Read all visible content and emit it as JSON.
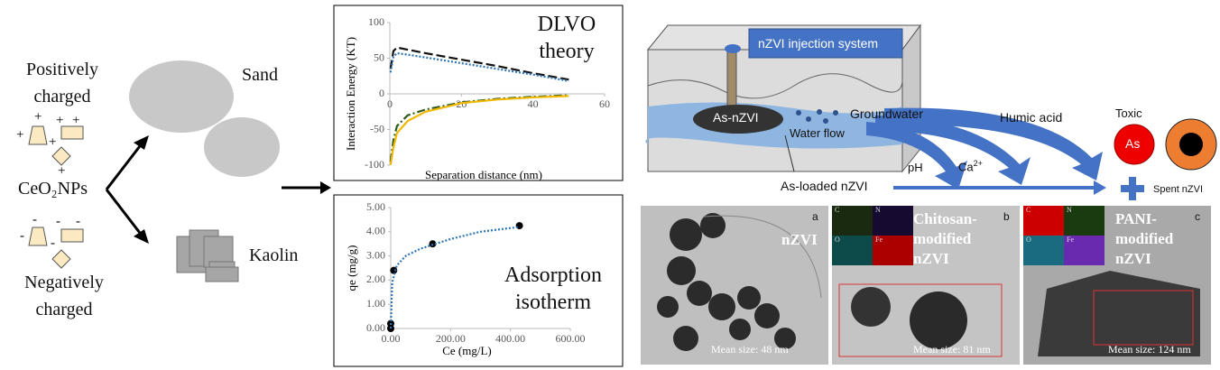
{
  "left": {
    "positive": "Positively charged",
    "particles": "CeO₂NPs",
    "negative": "Negatively charged",
    "sand": "Sand",
    "kaolin": "Kaolin",
    "plus": "+",
    "minus": "-"
  },
  "chart_data": [
    {
      "type": "line",
      "title": "DLVO theory",
      "x_label": "Separation distance (nm)",
      "y_label": "Interaction Energy (KT)",
      "x": [
        0.2,
        1,
        2,
        5,
        10,
        20,
        30,
        40,
        50
      ],
      "series": [
        {
          "color": "#111111",
          "dash": "dashed",
          "values": [
            35,
            60,
            65,
            62,
            57,
            48,
            39,
            29,
            20
          ]
        },
        {
          "color": "#2e75b6",
          "dash": "dotted",
          "values": [
            30,
            52,
            57,
            55,
            51,
            43,
            35,
            27,
            18
          ]
        },
        {
          "color": "#2e5a1c",
          "dash": "dashdot",
          "values": [
            -95,
            -65,
            -45,
            -30,
            -22,
            -12,
            -7,
            -4,
            -2
          ]
        },
        {
          "color": "#f2b800",
          "dash": "solid",
          "values": [
            -100,
            -75,
            -55,
            -38,
            -25,
            -13,
            -8,
            -5,
            -3
          ]
        }
      ],
      "xlim": [
        0,
        60
      ],
      "ylim": [
        -100,
        100
      ],
      "xticks": [
        0,
        20,
        40,
        60
      ],
      "yticks": [
        -100,
        -50,
        0,
        50,
        100
      ]
    },
    {
      "type": "scatter",
      "title": "Adsorption isotherm",
      "x_label": "Ce (mg/L)",
      "y_label": "qe (mg/g)",
      "series": [
        {
          "color": "#000000",
          "marker": "circle",
          "x": [
            0,
            0,
            10,
            140,
            430
          ],
          "values": [
            0,
            0.2,
            2.4,
            3.5,
            4.25
          ]
        },
        {
          "color": "#2e75b6",
          "dash": "dotted",
          "x": [
            0,
            5,
            20,
            50,
            100,
            200,
            300,
            430
          ],
          "values": [
            0,
            1.9,
            2.6,
            3.0,
            3.3,
            3.7,
            4.0,
            4.2
          ]
        }
      ],
      "xlim": [
        0,
        600
      ],
      "ylim": [
        0,
        5
      ],
      "xticks": [
        {
          "value": 0,
          "label": "0.00"
        },
        {
          "value": 200,
          "label": "200.00"
        },
        {
          "value": 400,
          "label": "400.00"
        },
        {
          "value": 600,
          "label": "600.00"
        }
      ],
      "yticks": [
        {
          "value": 0,
          "label": "0.00"
        },
        {
          "value": 1,
          "label": "1.00"
        },
        {
          "value": 2,
          "label": "2.00"
        },
        {
          "value": 3,
          "label": "3.00"
        },
        {
          "value": 4,
          "label": "4.00"
        },
        {
          "value": 5,
          "label": "5.00"
        }
      ]
    }
  ],
  "right": {
    "injection": "nZVI injection system",
    "as_nzvi": "As-nZVI",
    "groundwater": "Groundwater",
    "water_flow": "Water flow",
    "humic": "Humic acid",
    "toxic": "Toxic",
    "as": "As",
    "ph": "pH",
    "ca": "Ca",
    "ca_charge": "2+",
    "as_loaded": "As-loaded nZVI",
    "spent": "Spent nZVI"
  },
  "micrographs": [
    {
      "label": "nZVI",
      "letter": "a",
      "mean": "Mean size: 48 nm"
    },
    {
      "label": "Chitosan-modified nZVI",
      "letter": "b",
      "mean": "Mean size: 81 nm",
      "maps": [
        "C",
        "N",
        "O",
        "Fe"
      ]
    },
    {
      "label": "PANI-modified nZVI",
      "letter": "c",
      "mean": "Mean size: 124 nm",
      "maps": [
        "C",
        "N",
        "O",
        "Fe"
      ]
    }
  ]
}
